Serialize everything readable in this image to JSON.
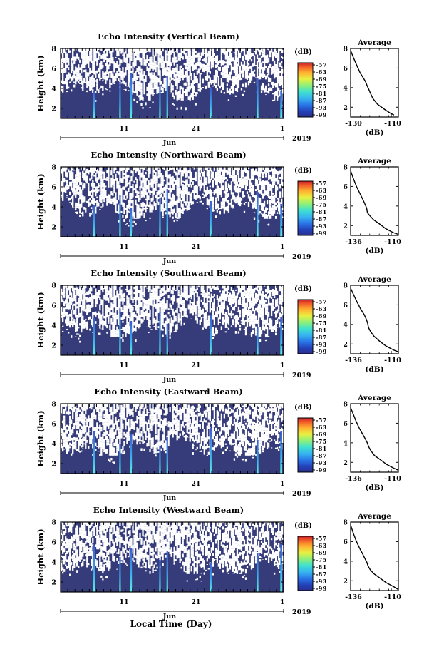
{
  "figure": {
    "month_label": "Jun",
    "year_label": "2019",
    "x_axis_title": "Local Time (Day)",
    "height_label": "Height (km)",
    "colorbar_unit": "(dB)",
    "average_title": "Average",
    "average_xlabel": "(dB)"
  },
  "chart_data": [
    {
      "type": "heatmap",
      "title": "Echo Intensity (Vertical Beam)",
      "ylabel": "Height (km)",
      "x_ticks": [
        "11",
        "21",
        "1"
      ],
      "y_ticks": [
        "2",
        "4",
        "6",
        "8"
      ],
      "ylim": [
        1,
        8
      ],
      "colorbar_ticks": [
        "-57",
        "-63",
        "-69",
        "-75",
        "-81",
        "-87",
        "-93",
        "-99"
      ],
      "colorbar_range": [
        -99,
        -57
      ],
      "average": {
        "x_ticks": [
          "-130",
          "-110"
        ],
        "xlim": [
          -130,
          -108
        ],
        "y_ticks": [
          "2",
          "4",
          "6",
          "8"
        ],
        "x": [
          -130,
          -128.6,
          -127,
          -125.6,
          -124.2,
          -123.1,
          -122.4,
          -121.8,
          -121,
          -119.8,
          -117.6,
          -114.5,
          -111.8,
          -110
        ],
        "y": [
          7.8,
          7,
          6.2,
          5.5,
          5,
          4.6,
          4.2,
          3.9,
          3.5,
          2.9,
          2.3,
          1.8,
          1.4,
          1.2
        ]
      }
    },
    {
      "type": "heatmap",
      "title": "Echo Intensity (Northward Beam)",
      "ylabel": "Height (km)",
      "x_ticks": [
        "11",
        "21",
        "1"
      ],
      "y_ticks": [
        "2",
        "4",
        "6",
        "8"
      ],
      "ylim": [
        1,
        8
      ],
      "colorbar_ticks": [
        "-57",
        "-63",
        "-69",
        "-75",
        "-81",
        "-87",
        "-93",
        "-99"
      ],
      "colorbar_range": [
        -99,
        -57
      ],
      "average": {
        "x_ticks": [
          "-136",
          "-110"
        ],
        "xlim": [
          -136,
          -110
        ],
        "y_ticks": [
          "2",
          "4",
          "6",
          "8"
        ],
        "x": [
          -136,
          -134.5,
          -132.8,
          -131,
          -129.4,
          -128.2,
          -127.3,
          -126.8,
          -125.5,
          -123.5,
          -120.5,
          -117,
          -113,
          -110
        ],
        "y": [
          7.6,
          6.8,
          6,
          5.3,
          4.7,
          4.2,
          3.8,
          3.3,
          3,
          2.6,
          2.2,
          1.7,
          1.3,
          1.1
        ]
      }
    },
    {
      "type": "heatmap",
      "title": "Echo Intensity (Southward Beam)",
      "ylabel": "Height (km)",
      "x_ticks": [
        "11",
        "21",
        "1"
      ],
      "y_ticks": [
        "2",
        "4",
        "6",
        "8"
      ],
      "ylim": [
        1,
        8
      ],
      "colorbar_ticks": [
        "-57",
        "-63",
        "-69",
        "-75",
        "-81",
        "-87",
        "-93",
        "-99"
      ],
      "colorbar_range": [
        -99,
        -57
      ],
      "average": {
        "x_ticks": [
          "-136",
          "-110"
        ],
        "xlim": [
          -136,
          -110
        ],
        "y_ticks": [
          "2",
          "4",
          "6",
          "8"
        ],
        "x": [
          -136,
          -134.3,
          -132.5,
          -130.6,
          -128.6,
          -127.4,
          -126.7,
          -126.3,
          -125.2,
          -123.3,
          -120.3,
          -116.8,
          -112.8,
          -110
        ],
        "y": [
          7.7,
          7,
          6.3,
          5.6,
          5,
          4.5,
          4.1,
          3.7,
          3.3,
          2.8,
          2.3,
          1.8,
          1.4,
          1.2
        ]
      }
    },
    {
      "type": "heatmap",
      "title": "Echo Intensity (Eastward Beam)",
      "ylabel": "Height (km)",
      "x_ticks": [
        "11",
        "21",
        "1"
      ],
      "y_ticks": [
        "2",
        "4",
        "6",
        "8"
      ],
      "ylim": [
        1,
        8
      ],
      "colorbar_ticks": [
        "-57",
        "-63",
        "-69",
        "-75",
        "-81",
        "-87",
        "-93",
        "-99"
      ],
      "colorbar_range": [
        -99,
        -57
      ],
      "average": {
        "x_ticks": [
          "-136",
          "-110"
        ],
        "xlim": [
          -136,
          -110
        ],
        "y_ticks": [
          "2",
          "4",
          "6",
          "8"
        ],
        "x": [
          -136,
          -134.5,
          -133,
          -131.3,
          -129.5,
          -128,
          -126.9,
          -126.2,
          -125,
          -123,
          -120,
          -116.5,
          -112.5,
          -110
        ],
        "y": [
          7.6,
          6.9,
          6.2,
          5.5,
          4.9,
          4.4,
          4,
          3.6,
          3.2,
          2.7,
          2.3,
          1.8,
          1.4,
          1.2
        ]
      }
    },
    {
      "type": "heatmap",
      "title": "Echo Intensity (Westward Beam)",
      "ylabel": "Height (km)",
      "x_ticks": [
        "11",
        "21",
        "1"
      ],
      "y_ticks": [
        "2",
        "4",
        "6",
        "8"
      ],
      "ylim": [
        1,
        8
      ],
      "colorbar_ticks": [
        "-57",
        "-63",
        "-69",
        "-75",
        "-81",
        "-87",
        "-93",
        "-99"
      ],
      "colorbar_range": [
        -99,
        -57
      ],
      "average": {
        "x_ticks": [
          "-136",
          "-110"
        ],
        "xlim": [
          -136,
          -110
        ],
        "y_ticks": [
          "2",
          "4",
          "6",
          "8"
        ],
        "x": [
          -136,
          -134.6,
          -133,
          -131.3,
          -129.6,
          -128.3,
          -127.2,
          -126.5,
          -125.2,
          -123.2,
          -120.2,
          -116.6,
          -112.6,
          -110
        ],
        "y": [
          7.7,
          6.9,
          6.1,
          5.4,
          4.8,
          4.3,
          3.9,
          3.5,
          3.1,
          2.7,
          2.3,
          1.8,
          1.4,
          1.1
        ]
      }
    }
  ]
}
